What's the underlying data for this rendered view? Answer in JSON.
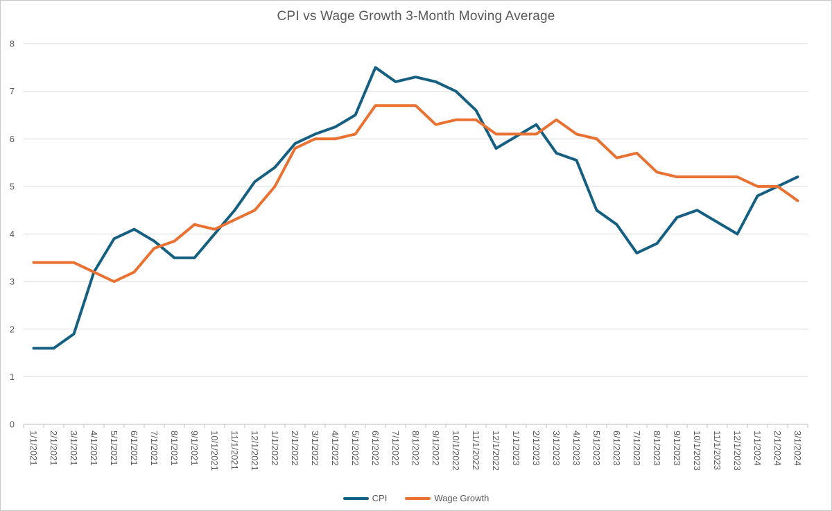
{
  "chart_title": "CPI vs Wage Growth 3-Month Moving Average",
  "colors": {
    "cpi": "#156082",
    "wage_growth": "#E97132",
    "text": "#595959",
    "gridline": "#D9D9D9",
    "axis_line": "#BFBFBF",
    "background": "#FFFFFF",
    "border": "#C8C8C8"
  },
  "chart_data": {
    "type": "line",
    "title": "CPI vs Wage Growth 3-Month Moving Average",
    "xlabel": "",
    "ylabel": "",
    "ylim": [
      0,
      8
    ],
    "yticks": [
      0,
      1,
      2,
      3,
      4,
      5,
      6,
      7,
      8
    ],
    "grid": true,
    "legend_position": "bottom",
    "x_label_rotation_deg": 90,
    "categories": [
      "1/1/2021",
      "2/1/2021",
      "3/1/2021",
      "4/1/2021",
      "5/1/2021",
      "6/1/2021",
      "7/1/2021",
      "8/1/2021",
      "9/1/2021",
      "10/1/2021",
      "11/1/2021",
      "12/1/2021",
      "1/1/2022",
      "2/1/2022",
      "3/1/2022",
      "4/1/2022",
      "5/1/2022",
      "6/1/2022",
      "7/1/2022",
      "8/1/2022",
      "9/1/2022",
      "10/1/2022",
      "11/1/2022",
      "12/1/2022",
      "1/1/2023",
      "2/1/2023",
      "3/1/2023",
      "4/1/2023",
      "5/1/2023",
      "6/1/2023",
      "7/1/2023",
      "8/1/2023",
      "9/1/2023",
      "10/1/2023",
      "11/1/2023",
      "12/1/2023",
      "1/1/2024",
      "2/1/2024",
      "3/1/2024"
    ],
    "series": [
      {
        "name": "CPI",
        "color": "#156082",
        "values": [
          1.6,
          1.6,
          1.9,
          3.2,
          3.9,
          4.1,
          3.85,
          3.5,
          3.5,
          4.0,
          4.5,
          5.1,
          5.4,
          5.9,
          6.1,
          6.25,
          6.5,
          7.5,
          7.2,
          7.3,
          7.2,
          7.0,
          6.6,
          5.8,
          6.05,
          6.3,
          5.7,
          5.55,
          4.5,
          4.2,
          3.6,
          3.8,
          4.35,
          4.5,
          4.25,
          4.0,
          4.8,
          5.0,
          5.2
        ]
      },
      {
        "name": "Wage Growth",
        "color": "#E97132",
        "values": [
          3.4,
          3.4,
          3.4,
          3.2,
          3.0,
          3.2,
          3.7,
          3.85,
          4.2,
          4.1,
          4.3,
          4.5,
          5.0,
          5.8,
          6.0,
          6.0,
          6.1,
          6.7,
          6.7,
          6.7,
          6.3,
          6.4,
          6.4,
          6.1,
          6.1,
          6.1,
          6.4,
          6.1,
          6.0,
          5.6,
          5.7,
          5.3,
          5.2,
          5.2,
          5.2,
          5.2,
          5.0,
          5.0,
          4.7
        ]
      }
    ]
  },
  "legend": {
    "items": [
      {
        "label": "CPI",
        "color": "#156082"
      },
      {
        "label": "Wage Growth",
        "color": "#E97132"
      }
    ]
  }
}
